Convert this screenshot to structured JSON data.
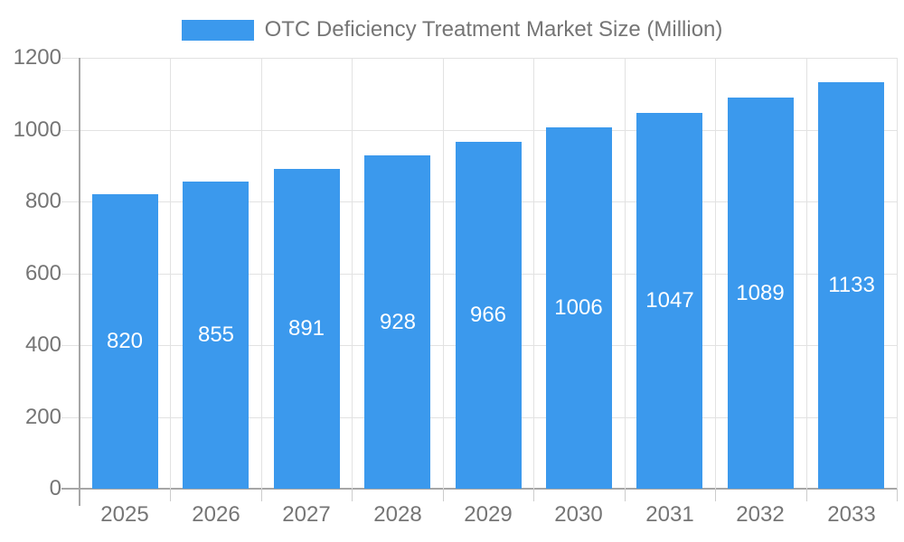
{
  "legend": {
    "label": "OTC Deficiency Treatment Market Size (Million)",
    "swatch_color": "#3b99ed"
  },
  "chart_data": {
    "type": "bar",
    "title": "OTC Deficiency Treatment Market Size (Million)",
    "categories": [
      "2025",
      "2026",
      "2027",
      "2028",
      "2029",
      "2030",
      "2031",
      "2032",
      "2033"
    ],
    "series": [
      {
        "name": "OTC Deficiency Treatment Market Size (Million)",
        "values": [
          820,
          855,
          891,
          928,
          966,
          1006,
          1047,
          1089,
          1133
        ]
      }
    ],
    "value_labels": [
      "820",
      "855",
      "891",
      "928",
      "966",
      "1006",
      "1047",
      "1089",
      "1133"
    ],
    "xlabel": "",
    "ylabel": "",
    "yticks": [
      0,
      200,
      400,
      600,
      800,
      1000,
      1200
    ],
    "ytick_labels": [
      "0",
      "200",
      "400",
      "600",
      "800",
      "1000",
      "1200"
    ],
    "ylim": [
      0,
      1200
    ],
    "grid": true,
    "legend_position": "top-center",
    "colors": {
      "bar": "#3b99ed",
      "value_label": "#ffffff",
      "axis_text": "#757575",
      "axis_line": "#a6a6a6",
      "gridline": "#e2e2e2",
      "tick": "#cccccc",
      "background": "#ffffff"
    }
  }
}
